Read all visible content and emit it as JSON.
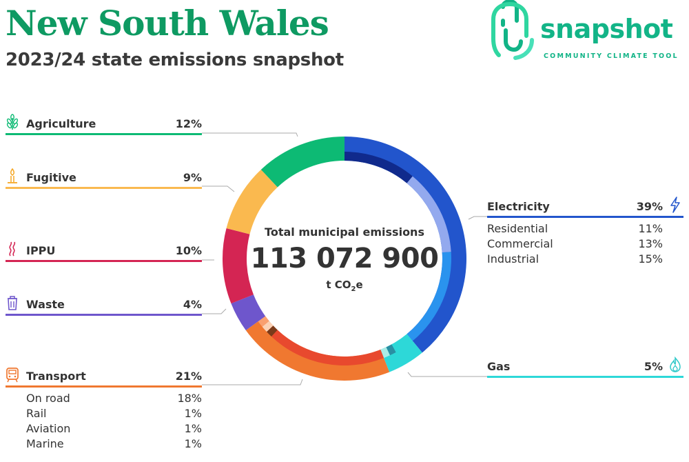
{
  "header": {
    "title": "New South Wales",
    "subtitle": "2023/24 state emissions snapshot"
  },
  "logo": {
    "brand": "snapshot",
    "tagline": "COMMUNITY CLIMATE TOOL",
    "color": "#12b487"
  },
  "center": {
    "label": "Total municipal emissions",
    "value": "113 072 900",
    "unit_prefix": "t CO",
    "unit_sub": "2",
    "unit_suffix": "e"
  },
  "chart_data": {
    "type": "pie",
    "title": "Total municipal emissions",
    "total": 113072900,
    "unit": "t CO2e",
    "categories": [
      {
        "name": "Electricity",
        "pct": 39,
        "color": "#2255cc",
        "icon": "lightning-icon",
        "sub": [
          {
            "name": "Residential",
            "pct": 11,
            "color": "#102a8c"
          },
          {
            "name": "Commercial",
            "pct": 13,
            "color": "#93a9ee"
          },
          {
            "name": "Industrial",
            "pct": 15,
            "color": "#2a93ee"
          }
        ]
      },
      {
        "name": "Gas",
        "pct": 5,
        "color": "#2dd8d8",
        "icon": "flame-icon",
        "sub": [
          {
            "name": "",
            "pct": 1,
            "color": "#2a8fa3"
          },
          {
            "name": "",
            "pct": 1,
            "color": "#a9ece6"
          }
        ]
      },
      {
        "name": "Transport",
        "pct": 21,
        "color": "#f07830",
        "icon": "train-icon",
        "sub": [
          {
            "name": "On road",
            "pct": 18,
            "color": "#e8492e"
          },
          {
            "name": "Rail",
            "pct": 1,
            "color": "#7a3a1a"
          },
          {
            "name": "Aviation",
            "pct": 1,
            "color": "#fbd2b6"
          },
          {
            "name": "Marine",
            "pct": 1,
            "color": "#f9a070"
          }
        ]
      },
      {
        "name": "Waste",
        "pct": 4,
        "color": "#6e56cc",
        "icon": "trash-icon",
        "sub": []
      },
      {
        "name": "IPPU",
        "pct": 10,
        "color": "#d42553",
        "icon": "smoke-icon",
        "sub": []
      },
      {
        "name": "Fugitive",
        "pct": 9,
        "color": "#fab94f",
        "icon": "gas-flare-icon",
        "sub": []
      },
      {
        "name": "Agriculture",
        "pct": 12,
        "color": "#0dba74",
        "icon": "wheat-icon",
        "sub": []
      }
    ]
  },
  "labels": {
    "agriculture": {
      "name": "Agriculture",
      "pct": "12%"
    },
    "fugitive": {
      "name": "Fugitive",
      "pct": "9%"
    },
    "ippu": {
      "name": "IPPU",
      "pct": "10%"
    },
    "waste": {
      "name": "Waste",
      "pct": "4%"
    },
    "transport": {
      "name": "Transport",
      "pct": "21%",
      "sub": [
        {
          "name": "On road",
          "pct": "18%"
        },
        {
          "name": "Rail",
          "pct": "1%"
        },
        {
          "name": "Aviation",
          "pct": "1%"
        },
        {
          "name": "Marine",
          "pct": "1%"
        }
      ]
    },
    "electricity": {
      "name": "Electricity",
      "pct": "39%",
      "sub": [
        {
          "name": "Residential",
          "pct": "11%"
        },
        {
          "name": "Commercial",
          "pct": "13%"
        },
        {
          "name": "Industrial",
          "pct": "15%"
        }
      ]
    },
    "gas": {
      "name": "Gas",
      "pct": "5%"
    }
  }
}
